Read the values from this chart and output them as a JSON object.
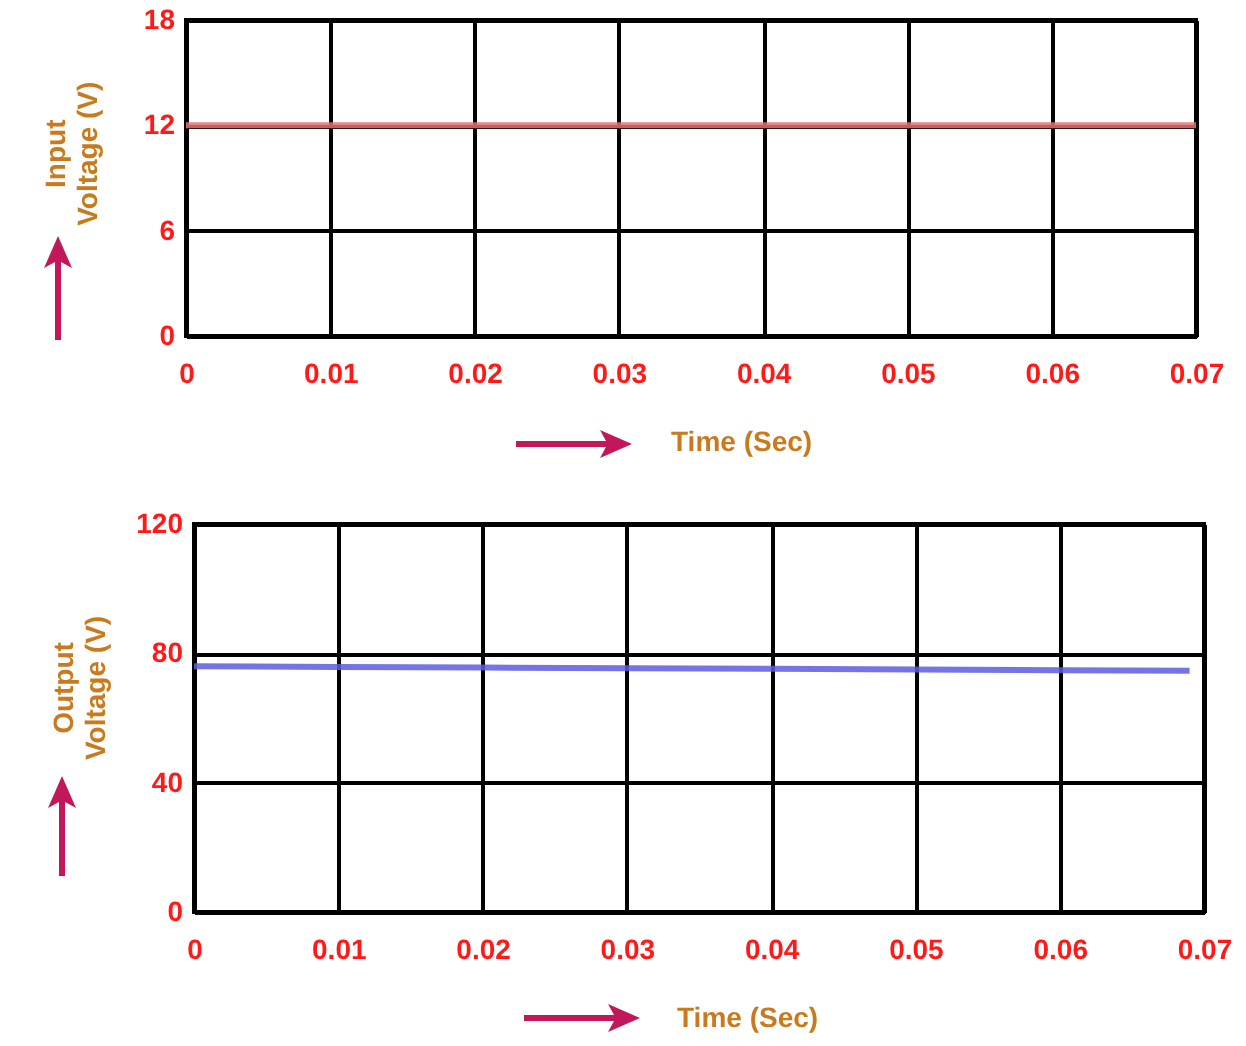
{
  "chart_data": [
    {
      "type": "line",
      "xlabel": "Time (Sec)",
      "ylabel": "Input Voltage (V)",
      "x": [
        0,
        0.07
      ],
      "series": [
        {
          "color": "#e57373",
          "values": [
            12,
            12
          ]
        }
      ],
      "xlim": [
        0,
        0.07
      ],
      "xticks": [
        0,
        0.01,
        0.02,
        0.03,
        0.04,
        0.05,
        0.06,
        0.07
      ],
      "ylim": [
        0,
        18
      ],
      "yticks": [
        0,
        6,
        12,
        18
      ],
      "grid": true
    },
    {
      "type": "line",
      "xlabel": "Time (Sec)",
      "ylabel": "Output Voltage (V)",
      "x": [
        0,
        0.01,
        0.02,
        0.03,
        0.04,
        0.05,
        0.06,
        0.069
      ],
      "series": [
        {
          "color": "#5c5ce0",
          "values": [
            76,
            75.8,
            75.6,
            75.4,
            75.2,
            75,
            74.8,
            74.6
          ]
        }
      ],
      "xlim": [
        0,
        0.07
      ],
      "xticks": [
        0,
        0.01,
        0.02,
        0.03,
        0.04,
        0.05,
        0.06,
        0.07
      ],
      "ylim": [
        0,
        120
      ],
      "yticks": [
        0,
        40,
        80,
        120
      ],
      "grid": true
    }
  ]
}
